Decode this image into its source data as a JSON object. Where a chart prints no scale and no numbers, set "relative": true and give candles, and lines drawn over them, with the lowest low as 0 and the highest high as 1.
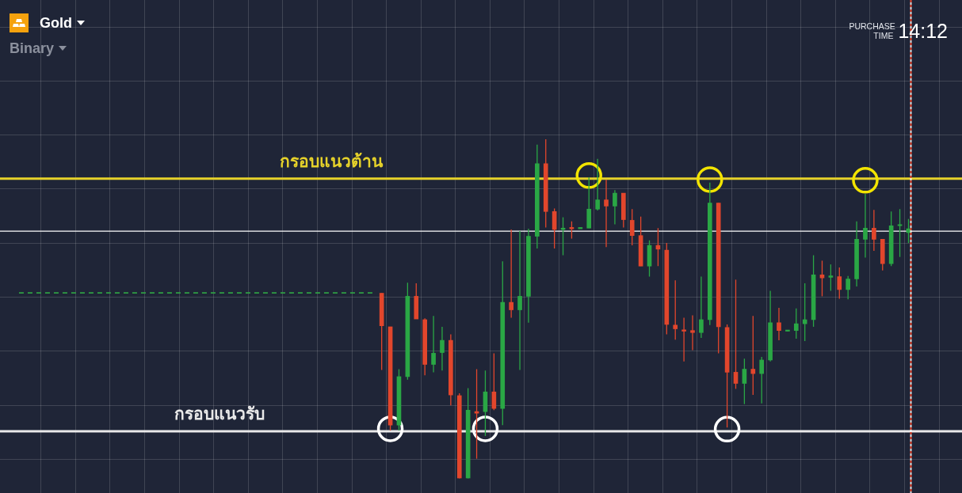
{
  "chart_data": {
    "type": "candlestick",
    "title": "Gold",
    "subtitle": "Binary",
    "relative": true,
    "grid": true,
    "annotations": [
      "PURCHASE TIME",
      "14:12"
    ],
    "categories": [
      null,
      null,
      null,
      null,
      null,
      null,
      null,
      null,
      null,
      null,
      null,
      null,
      null,
      null,
      null,
      null,
      null,
      null,
      null,
      null,
      null,
      null,
      null,
      null,
      null,
      null,
      null,
      null,
      null,
      null,
      null,
      null,
      null,
      null,
      null,
      null,
      null,
      null,
      null,
      null,
      null,
      null,
      null,
      null,
      null,
      null,
      null,
      null,
      null,
      null,
      null,
      null,
      null,
      null,
      null,
      null,
      null,
      null,
      null,
      null,
      null,
      null,
      null,
      null,
      null,
      null,
      null,
      null,
      null,
      null,
      null,
      null,
      null,
      null,
      null,
      null,
      null,
      null,
      null,
      null,
      null,
      null,
      null,
      null,
      null,
      null,
      null,
      null,
      null,
      null,
      null,
      null,
      null,
      null,
      null,
      null,
      null,
      null,
      null,
      null,
      null,
      null,
      null,
      null,
      null,
      null,
      null,
      null
    ],
    "ohlc": [
      null,
      null,
      null,
      null,
      null,
      null,
      null,
      null,
      null,
      null,
      null,
      null,
      null,
      null,
      null,
      null,
      null,
      null,
      null,
      null,
      null,
      null,
      null,
      null,
      null,
      null,
      null,
      null,
      null,
      null,
      null,
      null,
      null,
      null,
      null,
      null,
      null,
      null,
      null,
      null,
      null,
      null,
      [
        0.546,
        0.546,
        0.32,
        0.45
      ],
      [
        0.447,
        0.447,
        0.141,
        0.157
      ],
      [
        0.157,
        0.322,
        0.141,
        0.3
      ],
      [
        0.3,
        0.577,
        0.291,
        0.537
      ],
      [
        0.537,
        0.575,
        0.47,
        0.47
      ],
      [
        0.468,
        0.472,
        0.304,
        0.336
      ],
      [
        0.336,
        0.479,
        0.313,
        0.369
      ],
      [
        0.371,
        0.447,
        0.318,
        0.407
      ],
      [
        0.407,
        0.425,
        0.215,
        0.246
      ],
      [
        0.244,
        0.251,
        0,
        0
      ],
      [
        0,
        0.266,
        0,
        0.201
      ],
      [
        0.197,
        0.322,
        0.058,
        0.192
      ],
      [
        0.197,
        0.318,
        0.125,
        0.255
      ],
      [
        0.255,
        0.369,
        0.201,
        0.206
      ],
      [
        0.206,
        0.64,
        0.157,
        0.519
      ],
      [
        0.519,
        0.734,
        0.474,
        0.497
      ],
      [
        0.497,
        0.729,
        0.32,
        0.537
      ],
      [
        0.537,
        0.736,
        0.459,
        0.714
      ],
      [
        0.714,
        0.984,
        0.678,
        0.928
      ],
      [
        0.928,
        1,
        0.74,
        0.787
      ],
      [
        0.787,
        0.796,
        0.678,
        0.734
      ],
      [
        0.734,
        0.77,
        0.658,
        0.738
      ],
      [
        0.74,
        0.758,
        0.707,
        0.736
      ],
      [
        0.736,
        0.74,
        0.736,
        0.74
      ],
      [
        0.738,
        0.888,
        0.738,
        0.794
      ],
      [
        0.794,
        0.942,
        0.79,
        0.821
      ],
      [
        0.821,
        0.881,
        0.682,
        0.803
      ],
      [
        0.803,
        0.85,
        0.749,
        0.841
      ],
      [
        0.841,
        0.841,
        0.74,
        0.763
      ],
      [
        0.761,
        0.794,
        0.687,
        0.716
      ],
      [
        0.716,
        0.772,
        0.626,
        0.626
      ],
      [
        0.626,
        0.702,
        0.595,
        0.687
      ],
      [
        0.687,
        0.738,
        0.626,
        0.676
      ],
      [
        0.673,
        0.694,
        0.425,
        0.454
      ],
      [
        0.452,
        0.584,
        0.409,
        0.441
      ],
      [
        0.438,
        0.474,
        0.345,
        0.434
      ],
      [
        0.436,
        0.481,
        0.378,
        0.43
      ],
      [
        0.43,
        0.595,
        0.414,
        0.468
      ],
      [
        0.468,
        0.872,
        0.452,
        0.812
      ],
      [
        0.812,
        0.812,
        0.369,
        0.447
      ],
      [
        0.445,
        0.454,
        0.15,
        0.313
      ],
      [
        0.313,
        0.586,
        0.264,
        0.28
      ],
      [
        0.28,
        0.353,
        0.219,
        0.322
      ],
      [
        0.322,
        0.479,
        0.246,
        0.309
      ],
      [
        0.309,
        0.358,
        0.221,
        0.349
      ],
      [
        0.349,
        0.553,
        0.345,
        0.459
      ],
      [
        0.459,
        0.503,
        0.407,
        0.436
      ],
      [
        0.434,
        0.436,
        0.434,
        0.436
      ],
      [
        0.436,
        0.501,
        0.412,
        0.456
      ],
      [
        0.456,
        0.575,
        0.405,
        0.468
      ],
      [
        0.468,
        0.658,
        0.447,
        0.6
      ],
      [
        0.6,
        0.642,
        0.537,
        0.591
      ],
      [
        0.593,
        0.631,
        0.553,
        0.597
      ],
      [
        0.595,
        0.622,
        0.53,
        0.557
      ],
      [
        0.557,
        0.597,
        0.528,
        0.588
      ],
      [
        0.588,
        0.758,
        0.566,
        0.705
      ],
      [
        0.705,
        0.839,
        0.651,
        0.738
      ],
      [
        0.738,
        0.792,
        0.671,
        0.705
      ],
      [
        0.705,
        0.705,
        0.613,
        0.633
      ],
      [
        0.633,
        0.787,
        0.626,
        0.745
      ],
      [
        0.745,
        0.794,
        0.653,
        0.747
      ],
      [
        0.725,
        0.765,
        0.694,
        0.736
      ],
      null,
      null,
      null,
      null
    ],
    "colors": [
      null,
      null,
      null,
      null,
      null,
      null,
      null,
      null,
      null,
      null,
      null,
      null,
      null,
      null,
      null,
      null,
      null,
      null,
      null,
      null,
      null,
      null,
      null,
      null,
      null,
      null,
      null,
      null,
      null,
      null,
      null,
      null,
      null,
      null,
      null,
      null,
      null,
      null,
      null,
      null,
      null,
      null,
      "#e2462c",
      "#e2462c",
      "#2aa745",
      "#2aa745",
      "#e2462c",
      "#e2462c",
      "#2aa745",
      "#2aa745",
      "#e2462c",
      "#e2462c",
      "#2aa745",
      "#e2462c",
      "#2aa745",
      "#e2462c",
      "#2aa745",
      "#e2462c",
      "#2aa745",
      "#2aa745",
      "#2aa745",
      "#e2462c",
      "#e2462c",
      "#2aa745",
      "#e2462c",
      "#2aa745",
      "#2aa745",
      "#2aa745",
      "#e2462c",
      "#2aa745",
      "#e2462c",
      "#e2462c",
      "#e2462c",
      "#2aa745",
      "#e2462c",
      "#e2462c",
      "#e2462c",
      "#e2462c",
      "#e2462c",
      "#2aa745",
      "#2aa745",
      "#e2462c",
      "#e2462c",
      "#e2462c",
      "#2aa745",
      "#e2462c",
      "#2aa745",
      "#2aa745",
      "#e2462c",
      "#2aa745",
      "#2aa745",
      "#2aa745",
      "#2aa745",
      "#e2462c",
      "#2aa745",
      "#e2462c",
      "#2aa745",
      "#2aa745",
      "#2aa745",
      "#e2462c",
      "#e2462c",
      "#2aa745",
      "#2aa745",
      "#2aa745",
      null,
      null,
      null,
      null
    ],
    "series": [
      {
        "type": "line",
        "color": "#2f9e44",
        "line_style": "dashed",
        "marker": "none",
        "values": [
          0.547,
          0.547,
          0.547,
          0.547,
          0.547,
          0.547,
          0.547,
          0.547,
          0.547,
          0.547,
          0.547,
          0.547,
          0.547,
          0.547,
          0.547,
          0.547,
          0.547,
          0.547,
          0.547,
          0.547,
          0.547,
          0.547,
          0.547,
          0.547,
          0.547,
          0.547,
          0.547,
          0.547,
          0.547,
          0.547,
          0.547,
          0.547,
          0.547,
          0.547,
          0.547,
          0.547,
          0.547,
          0.547,
          0.547,
          0.547,
          0.547,
          0.547,
          null,
          null,
          null,
          null,
          null,
          null,
          null,
          null,
          null,
          null,
          null,
          null,
          null,
          null,
          null,
          null,
          null,
          null,
          null,
          null,
          null,
          null,
          null,
          null,
          null,
          null,
          null,
          null,
          null,
          null,
          null,
          null,
          null,
          null,
          null,
          null,
          null,
          null,
          null,
          null,
          null,
          null,
          null,
          null,
          null,
          null,
          null,
          null,
          null,
          null,
          null,
          null,
          null,
          null,
          null,
          null,
          null,
          null,
          null,
          null,
          null,
          null,
          null,
          null,
          null,
          null
        ]
      },
      {
        "type": "scatter",
        "color": "#f2e400",
        "marker": "circle",
        "values": [
          null,
          null,
          null,
          null,
          null,
          null,
          null,
          null,
          null,
          null,
          null,
          null,
          null,
          null,
          null,
          null,
          null,
          null,
          null,
          null,
          null,
          null,
          null,
          null,
          null,
          null,
          null,
          null,
          null,
          null,
          null,
          null,
          null,
          null,
          null,
          null,
          null,
          null,
          null,
          null,
          null,
          null,
          null,
          null,
          null,
          null,
          null,
          null,
          null,
          null,
          null,
          null,
          null,
          null,
          null,
          null,
          null,
          null,
          null,
          null,
          null,
          null,
          null,
          null,
          null,
          null,
          0.893,
          null,
          null,
          null,
          null,
          null,
          null,
          null,
          null,
          null,
          null,
          null,
          null,
          null,
          0.881,
          null,
          null,
          null,
          null,
          null,
          null,
          null,
          null,
          null,
          null,
          null,
          null,
          null,
          null,
          null,
          null,
          null,
          0.879,
          null,
          null,
          null,
          null,
          null,
          null,
          null,
          null,
          null
        ]
      },
      {
        "type": "scatter",
        "color": "#ffffff",
        "marker": "circle",
        "values": [
          null,
          null,
          null,
          null,
          null,
          null,
          null,
          null,
          null,
          null,
          null,
          null,
          null,
          null,
          null,
          null,
          null,
          null,
          null,
          null,
          null,
          null,
          null,
          null,
          null,
          null,
          null,
          null,
          null,
          null,
          null,
          null,
          null,
          null,
          null,
          null,
          null,
          null,
          null,
          null,
          null,
          null,
          null,
          0.146,
          null,
          null,
          null,
          null,
          null,
          null,
          null,
          null,
          null,
          null,
          0.146,
          null,
          null,
          null,
          null,
          null,
          null,
          null,
          null,
          null,
          null,
          null,
          null,
          null,
          null,
          null,
          null,
          null,
          null,
          null,
          null,
          null,
          null,
          null,
          null,
          null,
          null,
          null,
          0.145,
          null,
          null,
          null,
          null,
          null,
          null,
          null,
          null,
          null,
          null,
          null,
          null,
          null,
          null,
          null,
          null,
          null,
          null,
          null,
          null,
          null,
          null,
          null,
          null,
          null
        ]
      }
    ],
    "ref_lines": [
      {
        "axis": "y",
        "value": 0.884,
        "label": "กรอบแนวต้าน",
        "color": "#e6d22a"
      },
      {
        "axis": "y",
        "value": 0.139,
        "label": "กรอบแนวรับ",
        "color": "#e9e9e9"
      },
      {
        "axis": "y",
        "value": 0.729,
        "color": "#ffffff"
      }
    ]
  }
}
